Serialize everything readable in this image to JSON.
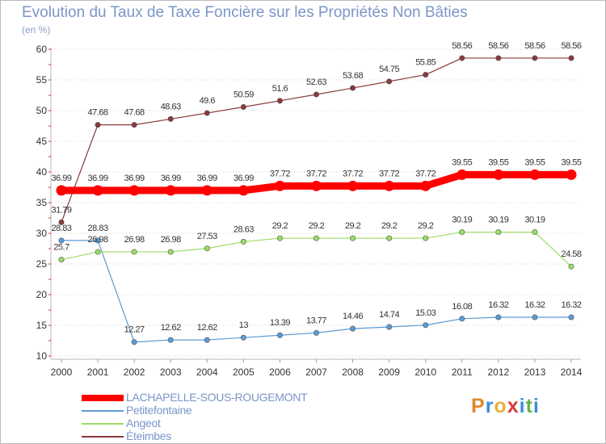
{
  "title": "Evolution du Taux de Taxe Foncière sur les Propriétés Non Bâties",
  "unit_label": "(en %)",
  "logo": {
    "letters": [
      "P",
      "r",
      "o",
      "x",
      "i",
      "t",
      "i"
    ],
    "colors": [
      "#e0882a",
      "#3a8fd6",
      "#e9b23a",
      "#d63a3a",
      "#3a8fd6",
      "#6ab04c",
      "#3a8fd6"
    ]
  },
  "chart_data": {
    "type": "line",
    "title": "Evolution du Taux de Taxe Foncière sur les Propriétés Non Bâties",
    "ylabel": "(en %)",
    "xlabel": "",
    "x": [
      "2000",
      "2001",
      "2002",
      "2003",
      "2004",
      "2005",
      "2006",
      "2007",
      "2008",
      "2009",
      "2010",
      "2011",
      "2012",
      "2013",
      "2014"
    ],
    "ylim": [
      10,
      60
    ],
    "yticks": [
      10,
      15,
      20,
      25,
      30,
      35,
      40,
      45,
      50,
      55,
      60
    ],
    "grid": "horizontal dotted",
    "series": [
      {
        "name": "LACHAPELLE-SOUS-ROUGEMONT",
        "color": "#ff0000",
        "bold": true,
        "values": [
          36.99,
          36.99,
          36.99,
          36.99,
          36.99,
          36.99,
          37.72,
          37.72,
          37.72,
          37.72,
          37.72,
          39.55,
          39.55,
          39.55,
          39.55
        ],
        "labels": [
          "36.99",
          "36.99",
          "36.99",
          "36.99",
          "36.99",
          "36.99",
          "37.72",
          "37.72",
          "37.72",
          "37.72",
          "37.72",
          "39.55",
          "39.55",
          "39.55",
          "39.55"
        ]
      },
      {
        "name": "Petitefontaine",
        "color": "#5b9bd5",
        "values": [
          28.83,
          28.83,
          12.27,
          12.62,
          12.62,
          13,
          13.39,
          13.77,
          14.46,
          14.74,
          15.03,
          16.08,
          16.32,
          16.32,
          16.32
        ],
        "labels": [
          "28.83",
          "28.83",
          "12.27",
          "12.62",
          "12.62",
          "13",
          "13.39",
          "13.77",
          "14.46",
          "14.74",
          "15.03",
          "16.08",
          "16.32",
          "16.32",
          "16.32"
        ]
      },
      {
        "name": "Angeot",
        "color": "#99dd66",
        "values": [
          25.7,
          26.98,
          26.98,
          26.98,
          27.53,
          28.63,
          29.2,
          29.2,
          29.2,
          29.2,
          29.2,
          30.19,
          30.19,
          30.19,
          24.58
        ],
        "labels": [
          "25.7",
          "26.98",
          "26.98",
          "26.98",
          "27.53",
          "28.63",
          "29.2",
          "29.2",
          "29.2",
          "29.2",
          "29.2",
          "30.19",
          "30.19",
          "30.19",
          "24.58"
        ]
      },
      {
        "name": "Éteimbes",
        "color": "#8b3a3a",
        "values": [
          31.79,
          47.68,
          47.68,
          48.63,
          49.6,
          50.59,
          51.6,
          52.63,
          53.68,
          54.75,
          55.85,
          58.56,
          58.56,
          58.56,
          58.56
        ],
        "labels": [
          "31.79",
          "47.68",
          "47.68",
          "48.63",
          "49.6",
          "50.59",
          "51.6",
          "52.63",
          "53.68",
          "54.75",
          "55.85",
          "58.56",
          "58.56",
          "58.56",
          "58.56"
        ]
      }
    ],
    "legend": "bottom-left"
  }
}
